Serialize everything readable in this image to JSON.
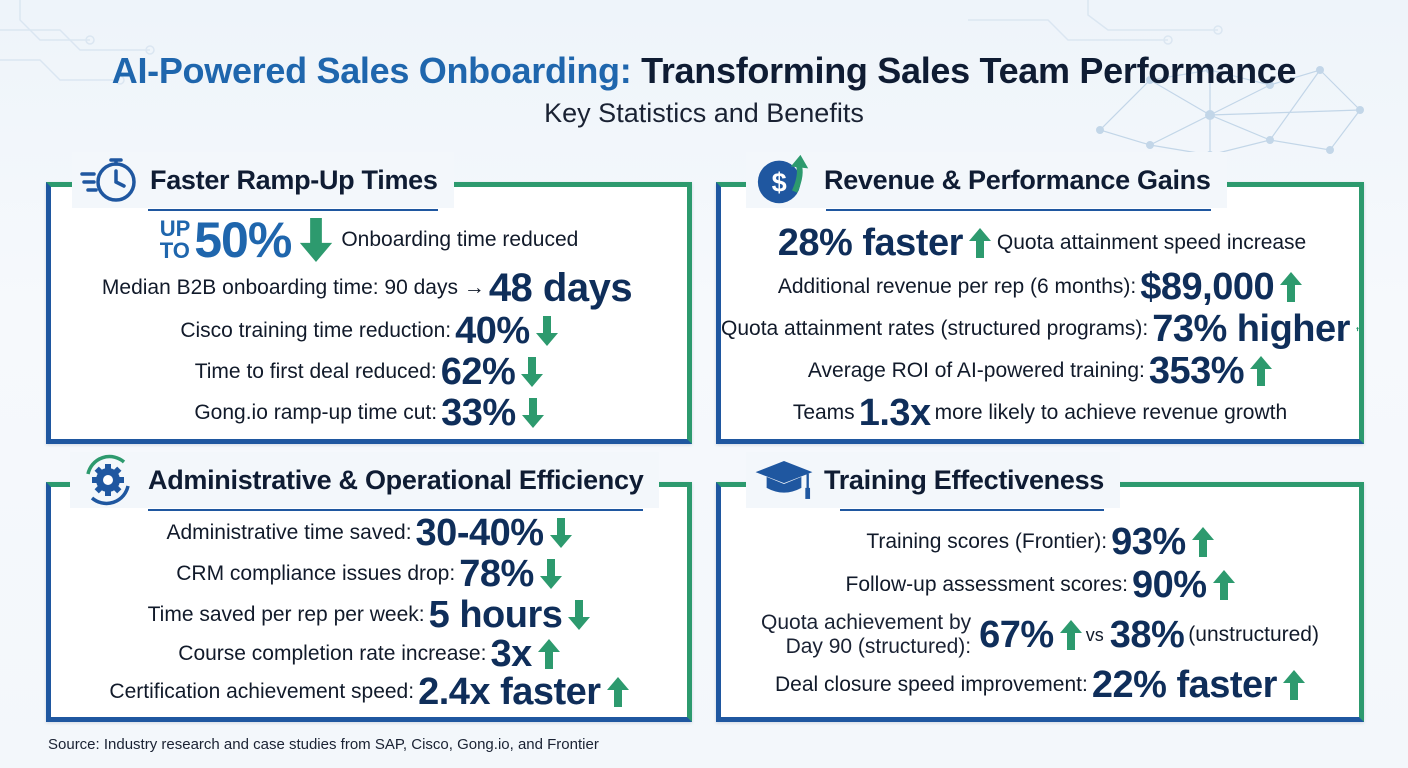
{
  "header": {
    "title_a": "AI-Powered Sales Onboarding:",
    "title_b": "Transforming Sales Team Performance",
    "subtitle": "Key Statistics and Benefits"
  },
  "colors": {
    "blue": "#1f66ad",
    "navy": "#0f2e5a",
    "green": "#2d9a6e",
    "frame_blue": "#1f57a0"
  },
  "ramp": {
    "icon": "stopwatch-icon",
    "title": "Faster Ramp-Up Times",
    "hero": {
      "prefix_1": "UP",
      "prefix_2": "TO",
      "value": "50%",
      "direction": "down",
      "label": "Onboarding time reduced"
    },
    "stats": [
      {
        "label": "Median B2B onboarding time: 90 days →",
        "value": "48 days",
        "direction": "none"
      },
      {
        "label": "Cisco training time reduction:",
        "value": "40%",
        "direction": "down"
      },
      {
        "label": "Time to first deal reduced:",
        "value": "62%",
        "direction": "down"
      },
      {
        "label": "Gong.io ramp-up time cut:",
        "value": "33%",
        "direction": "down"
      }
    ]
  },
  "revenue": {
    "icon": "dollar-up-icon",
    "title": "Revenue & Performance Gains",
    "stats": [
      {
        "value": "28% faster",
        "direction": "up",
        "label": "Quota attainment speed increase"
      },
      {
        "label": "Additional revenue per rep (6 months):",
        "value": "$89,000",
        "direction": "up"
      },
      {
        "label": "Quota attainment rates (structured programs):",
        "value": "73% higher",
        "direction": "up"
      },
      {
        "label": "Average ROI of AI-powered training:",
        "value": "353%",
        "direction": "up"
      }
    ],
    "teams": {
      "prefix": "Teams",
      "value": "1.3x",
      "suffix": "more likely to achieve revenue growth"
    }
  },
  "admin": {
    "icon": "gear-cycle-icon",
    "title": "Administrative & Operational Efficiency",
    "stats": [
      {
        "label": "Administrative time saved:",
        "value": "30-40%",
        "direction": "down"
      },
      {
        "label": "CRM compliance issues drop:",
        "value": "78%",
        "direction": "down"
      },
      {
        "label": "Time saved per rep per week:",
        "value": "5 hours",
        "direction": "down"
      },
      {
        "label": "Course completion rate increase:",
        "value": "3x",
        "direction": "up"
      },
      {
        "label": "Certification achievement speed:",
        "value": "2.4x faster",
        "direction": "up"
      }
    ]
  },
  "training": {
    "icon": "graduation-cap-icon",
    "title": "Training Effectiveness",
    "stats": [
      {
        "label": "Training scores (Frontier):",
        "value": "93%",
        "direction": "up"
      },
      {
        "label": "Follow-up assessment scores:",
        "value": "90%",
        "direction": "up"
      }
    ],
    "quota": {
      "label_1": "Quota achievement by",
      "label_2": "Day 90 (structured):",
      "value": "67%",
      "vs": "vs",
      "value_2": "38%",
      "suffix": "(unstructured)"
    },
    "deal": {
      "label": "Deal closure speed improvement:",
      "value": "22% faster",
      "direction": "up"
    }
  },
  "source": "Source: Industry research and case studies from SAP, Cisco, Gong.io, and Frontier"
}
